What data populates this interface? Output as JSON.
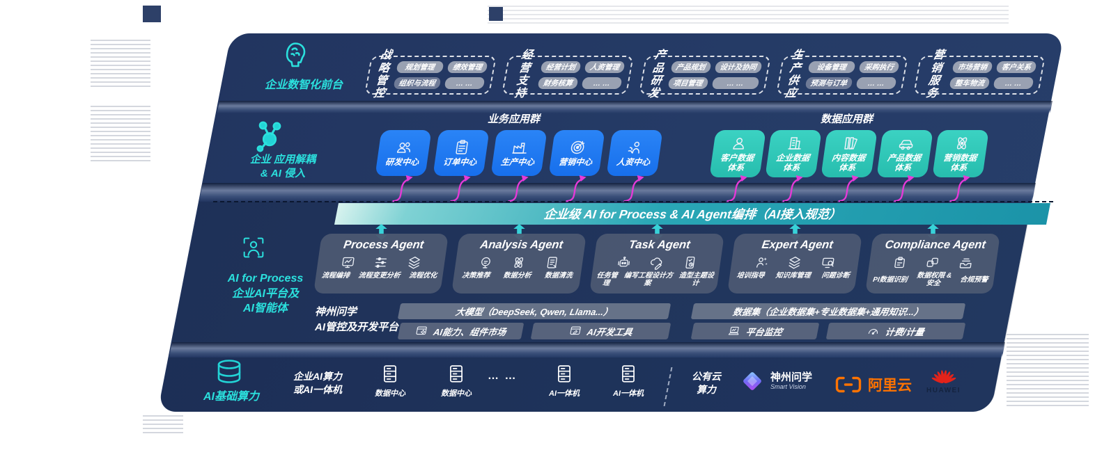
{
  "colors": {
    "panel_navy": "#253b66",
    "accent_cyan": "#2be0dd",
    "box_blue": "#1d78f2",
    "box_teal": "#2fc9ba",
    "banner_teal": "#1b93a8",
    "arrow_magenta": "#e63ad8",
    "ali_orange": "#ff7300",
    "huawei_red": "#e2231a"
  },
  "front": {
    "label": "企业数智化前台",
    "groups": [
      {
        "title": "战略\n管控",
        "pills": [
          {
            "label": "规划管理"
          },
          {
            "label": "绩效管理"
          },
          {
            "label": "组织与流程",
            "variant": "dark"
          },
          {
            "label": "… …"
          }
        ]
      },
      {
        "title": "经营\n支持",
        "pills": [
          {
            "label": "经营计划"
          },
          {
            "label": "人资管理"
          },
          {
            "label": "财务核算"
          },
          {
            "label": "… …"
          }
        ]
      },
      {
        "title": "产品\n研发",
        "pills": [
          {
            "label": "产品规划"
          },
          {
            "label": "设计及协同"
          },
          {
            "label": "项目管理"
          },
          {
            "label": "… …"
          }
        ]
      },
      {
        "title": "生产\n供应",
        "pills": [
          {
            "label": "设备管理"
          },
          {
            "label": "采购执行"
          },
          {
            "label": "预测与订单",
            "variant": "dark"
          },
          {
            "label": "… …"
          }
        ]
      },
      {
        "title": "营销\n服务",
        "pills": [
          {
            "label": "市场营销"
          },
          {
            "label": "客户关系"
          },
          {
            "label": "整车物流"
          },
          {
            "label": "… …"
          }
        ]
      }
    ]
  },
  "decouple": {
    "label": "企业 应用解耦\n& AI 侵入",
    "business_header": "业务应用群",
    "data_header": "数据应用群",
    "business_centers": [
      {
        "label": "研发中心",
        "icon": "team-icon"
      },
      {
        "label": "订单中心",
        "icon": "clipboard-icon"
      },
      {
        "label": "生产中心",
        "icon": "factory-icon"
      },
      {
        "label": "营销中心",
        "icon": "target-icon"
      },
      {
        "label": "人资中心",
        "icon": "people-flow-icon"
      }
    ],
    "data_centers": [
      {
        "label": "客户数据\n体系",
        "icon": "person-icon"
      },
      {
        "label": "企业数据\n体系",
        "icon": "building-icon"
      },
      {
        "label": "内容数据\n体系",
        "icon": "books-icon"
      },
      {
        "label": "产品数据\n体系",
        "icon": "car-icon"
      },
      {
        "label": "营销数据\n体系",
        "icon": "atom-icon"
      }
    ]
  },
  "banner": {
    "title": "企业级 AI for Process & AI Agent编排（AI接入规范）"
  },
  "agents": {
    "label": "AI for Process\n企业AI平台及\nAI智能体",
    "cards": [
      {
        "title": "Process Agent",
        "items": [
          {
            "label": "流程编排",
            "icon": "flow-edit-icon"
          },
          {
            "label": "流程变更分析",
            "icon": "flow-change-icon"
          },
          {
            "label": "流程优化",
            "icon": "flow-optimize-icon"
          }
        ]
      },
      {
        "title": "Analysis Agent",
        "items": [
          {
            "label": "决策推荐",
            "icon": "decision-icon"
          },
          {
            "label": "数据分析",
            "icon": "analysis-atom-icon"
          },
          {
            "label": "数据清洗",
            "icon": "data-clean-icon"
          }
        ]
      },
      {
        "title": "Task Agent",
        "items": [
          {
            "label": "任务管理",
            "icon": "task-bot-icon"
          },
          {
            "label": "编写工程设计方案",
            "icon": "write-plan-icon"
          },
          {
            "label": "造型主题设计",
            "icon": "theme-design-icon"
          }
        ]
      },
      {
        "title": "Expert Agent",
        "items": [
          {
            "label": "培训指导",
            "icon": "training-icon"
          },
          {
            "label": "知识库管理",
            "icon": "knowledge-icon"
          },
          {
            "label": "问题诊断",
            "icon": "diagnosis-icon"
          }
        ]
      },
      {
        "title": "Compliance Agent",
        "items": [
          {
            "label": "PI数据识别",
            "icon": "pi-data-icon"
          },
          {
            "label": "数据权限 &\n安全",
            "icon": "permission-icon"
          },
          {
            "label": "合规预警",
            "icon": "alert-icon"
          }
        ]
      }
    ]
  },
  "platform": {
    "label": "神州问学\nAI管控及开发平台",
    "model_bar": "大模型（DeepSeek, Qwen, Llama...）",
    "dataset_bar": "数据集（企业数据集+专业数据集+通用知识...）",
    "tools": [
      {
        "label": "AI能力、组件市场",
        "icon": "market-icon"
      },
      {
        "label": "AI开发工具",
        "icon": "devtool-icon"
      },
      {
        "label": "平台监控",
        "icon": "monitor-icon"
      },
      {
        "label": "计费/计量",
        "icon": "meter-icon"
      }
    ]
  },
  "compute": {
    "label": "AI基础算力",
    "col1": "企业AI算力\n或AI一体机",
    "nodes": [
      {
        "label": "数据中心"
      },
      {
        "label": "数据中心"
      },
      {
        "label": "… …"
      },
      {
        "label": "AI一体机"
      },
      {
        "label": "AI一体机"
      }
    ],
    "public_cloud": "公有云\n算力",
    "vendors": [
      {
        "name": "神州问学",
        "sub": "Smart Vision"
      },
      {
        "name": "阿里云"
      },
      {
        "name": "HUAWEI"
      }
    ]
  }
}
